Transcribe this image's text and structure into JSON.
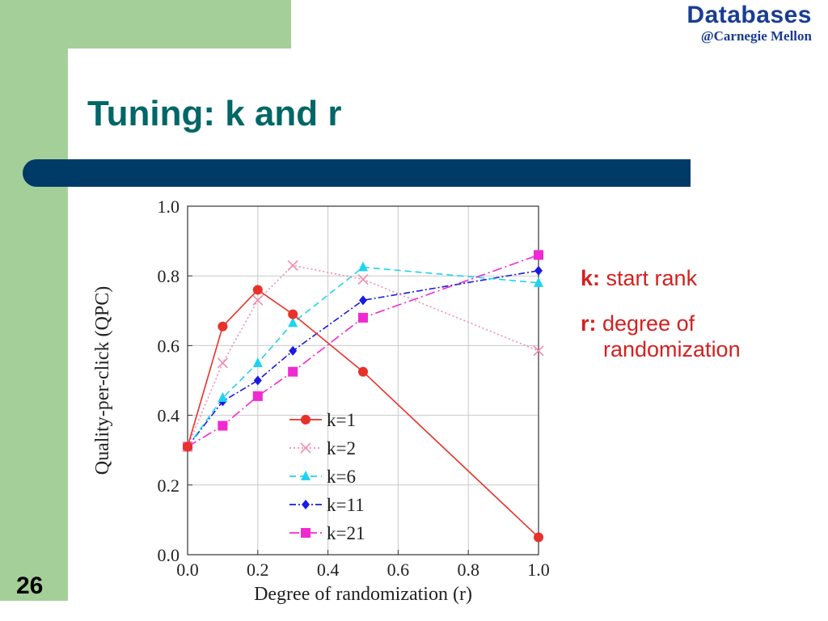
{
  "brand": {
    "name": "Databases",
    "subtitle": "@Carnegie Mellon"
  },
  "slide": {
    "title": "Tuning: k and r",
    "number": "26"
  },
  "notes": [
    {
      "key": "k:",
      "text": "start rank",
      "cont": ""
    },
    {
      "key": "r:",
      "text": "degree of",
      "cont": "randomization"
    }
  ],
  "colors": {
    "title": "#006666",
    "bar": "#003a66",
    "band": "#a5cf98",
    "notes": "#d42020",
    "brand": "#1a3c93"
  },
  "chart_data": {
    "type": "line",
    "xlabel": "Degree of randomization (r)",
    "ylabel": "Quality-per-click (QPC)",
    "xlim": [
      0,
      1.0
    ],
    "ylim": [
      0,
      1.0
    ],
    "xticks": [
      "0.0",
      "0.2",
      "0.4",
      "0.6",
      "0.8",
      "1.0"
    ],
    "yticks": [
      "0.0",
      "0.2",
      "0.4",
      "0.6",
      "0.8",
      "1.0"
    ],
    "grid": true,
    "legend": "bottom-center",
    "series": [
      {
        "name": "k=1",
        "color": "#e8312a",
        "marker": "circle",
        "dash": "",
        "x": [
          0,
          0.1,
          0.2,
          0.3,
          0.5,
          1.0
        ],
        "y": [
          0.31,
          0.655,
          0.76,
          0.69,
          0.525,
          0.05
        ]
      },
      {
        "name": "k=2",
        "color": "#f08bb0",
        "marker": "x",
        "dash": "2,3",
        "x": [
          0,
          0.1,
          0.2,
          0.3,
          0.5,
          1.0
        ],
        "y": [
          0.31,
          0.55,
          0.73,
          0.83,
          0.79,
          0.585
        ]
      },
      {
        "name": "k=6",
        "color": "#1fd3f0",
        "marker": "triangle",
        "dash": "8,5",
        "x": [
          0,
          0.1,
          0.2,
          0.3,
          0.5,
          1.0
        ],
        "y": [
          0.31,
          0.45,
          0.55,
          0.665,
          0.825,
          0.78
        ]
      },
      {
        "name": "k=11",
        "color": "#1a1ae0",
        "marker": "diamond",
        "dash": "8,3,2,3",
        "x": [
          0,
          0.1,
          0.2,
          0.3,
          0.5,
          1.0
        ],
        "y": [
          0.31,
          0.44,
          0.5,
          0.585,
          0.73,
          0.815
        ]
      },
      {
        "name": "k=21",
        "color": "#f02ad0",
        "marker": "square",
        "dash": "12,4,2,4",
        "x": [
          0,
          0.1,
          0.2,
          0.3,
          0.5,
          1.0
        ],
        "y": [
          0.31,
          0.37,
          0.455,
          0.525,
          0.68,
          0.86
        ]
      }
    ]
  }
}
